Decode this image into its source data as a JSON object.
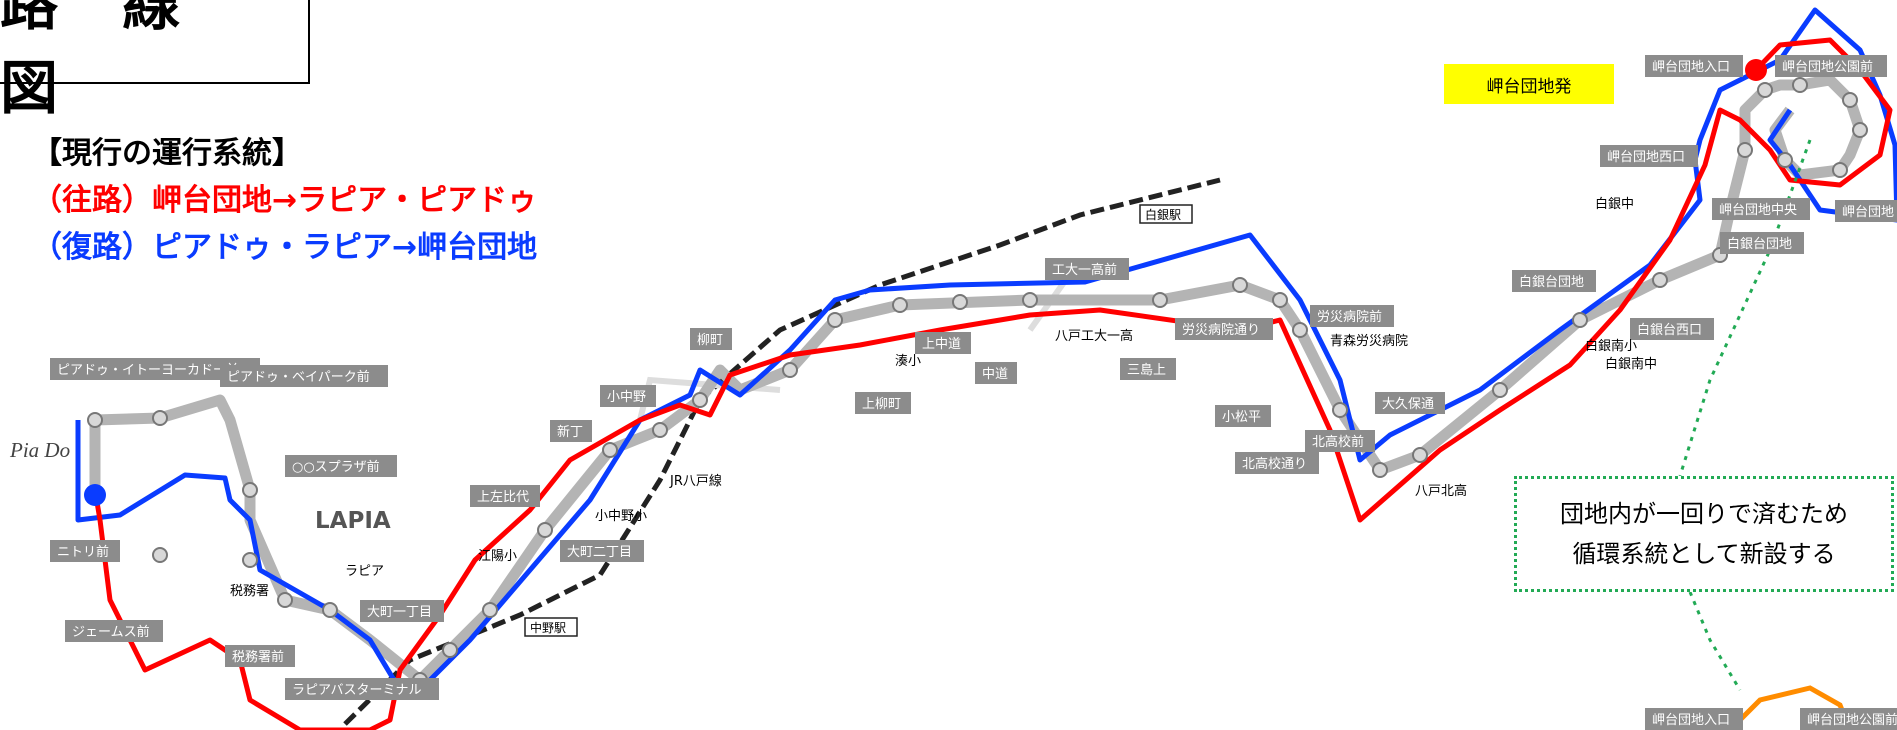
{
  "title": "路 線 図",
  "legend": {
    "heading": "【現行の運行系統】",
    "outbound": "（往路）岬台団地→ラピア・ピアドゥ",
    "return": "（復路）ピアドゥ・ラピア→岬台団地"
  },
  "origin_label": "岬台団地発",
  "note": [
    "団地内が一回りで済むため",
    "循環系統として新設する"
  ],
  "logos": {
    "piado": "Pia Do",
    "lapia": "LAPIA"
  },
  "colors": {
    "outbound": "#ff0000",
    "return": "#0a3cff",
    "route": "#b4b4b4",
    "stop_label_bg": "#8c8c8c",
    "note_border": "#22aa55"
  },
  "stop_labels": [
    "ピアドゥ・イトーヨーカドー前",
    "ピアドゥ・ベイパーク前",
    "ニトリ前",
    "ジェームス前",
    "税務署前",
    "ラピアバスターミナル",
    "○○スプラザ前",
    "大町一丁目",
    "大町二丁目",
    "上左比代",
    "小中野",
    "新丁",
    "柳町",
    "上柳町",
    "上中道",
    "中道",
    "工大一高前",
    "三島上",
    "労災病院通り",
    "労災病院前",
    "小松平",
    "北高校通り",
    "北高校前",
    "大久保通",
    "白銀台西口",
    "白銀台団地",
    "白銀台団地",
    "岬台団地中央",
    "岬台団地西口",
    "岬台団地入口",
    "岬台団地公園前",
    "岬台団地入口",
    "岬台団地公園前",
    "岬台団地"
  ],
  "plain_labels": [
    "税務署",
    "江陽小",
    "小中野小",
    "JR八戸線",
    "湊小",
    "八戸工大一高",
    "青森労災病院",
    "八戸北高",
    "白銀中",
    "白銀南小",
    "白銀南中",
    "ラピア"
  ],
  "rail_labels": [
    "白銀駅",
    "中野駅"
  ]
}
